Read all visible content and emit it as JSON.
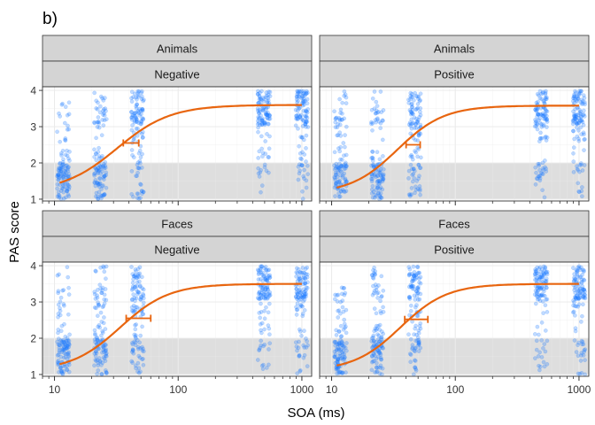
{
  "figure": {
    "panel_tag": "b)",
    "xlabel": "SOA (ms)",
    "ylabel": "PAS score",
    "colors": {
      "points": "#1E7BFF",
      "fit": "#E8650F",
      "band": "#DEDEDE",
      "strip": "#D4D4D4",
      "grid": "#EBEBEB",
      "border": "#333333"
    }
  },
  "chart_data": {
    "type": "scatter",
    "xscale": "log",
    "xlim": [
      8,
      1200
    ],
    "ylim": [
      0.95,
      4.1
    ],
    "x_ticks": [
      10,
      100,
      1000
    ],
    "x_tick_labels": [
      "10",
      "100",
      "1000"
    ],
    "y_ticks": [
      1,
      2,
      3,
      4
    ],
    "y_tick_labels": [
      "1",
      "2",
      "3",
      "4"
    ],
    "shaded_band": [
      1,
      2
    ],
    "soa_levels": [
      11.8,
      23.5,
      47,
      494,
      1000
    ],
    "panels": [
      {
        "category": "Animals",
        "valence": "Negative",
        "fit": {
          "lower": 1.2,
          "upper": 3.6,
          "x50": 32,
          "slope": 2.0
        },
        "threshold": {
          "x": 42,
          "y": 2.55,
          "xmin": 36,
          "xmax": 48
        }
      },
      {
        "category": "Animals",
        "valence": "Positive",
        "fit": {
          "lower": 1.15,
          "upper": 3.58,
          "x50": 34,
          "slope": 2.3
        },
        "threshold": {
          "x": 45,
          "y": 2.5,
          "xmin": 40,
          "xmax": 52
        }
      },
      {
        "category": "Faces",
        "valence": "Negative",
        "fit": {
          "lower": 1.1,
          "upper": 3.5,
          "x50": 34,
          "slope": 2.2
        },
        "threshold": {
          "x": 44,
          "y": 2.55,
          "xmin": 38,
          "xmax": 60
        }
      },
      {
        "category": "Faces",
        "valence": "Positive",
        "fit": {
          "lower": 1.1,
          "upper": 3.5,
          "x50": 36,
          "slope": 2.3
        },
        "threshold": {
          "x": 44,
          "y": 2.52,
          "xmin": 39,
          "xmax": 60
        }
      }
    ]
  }
}
